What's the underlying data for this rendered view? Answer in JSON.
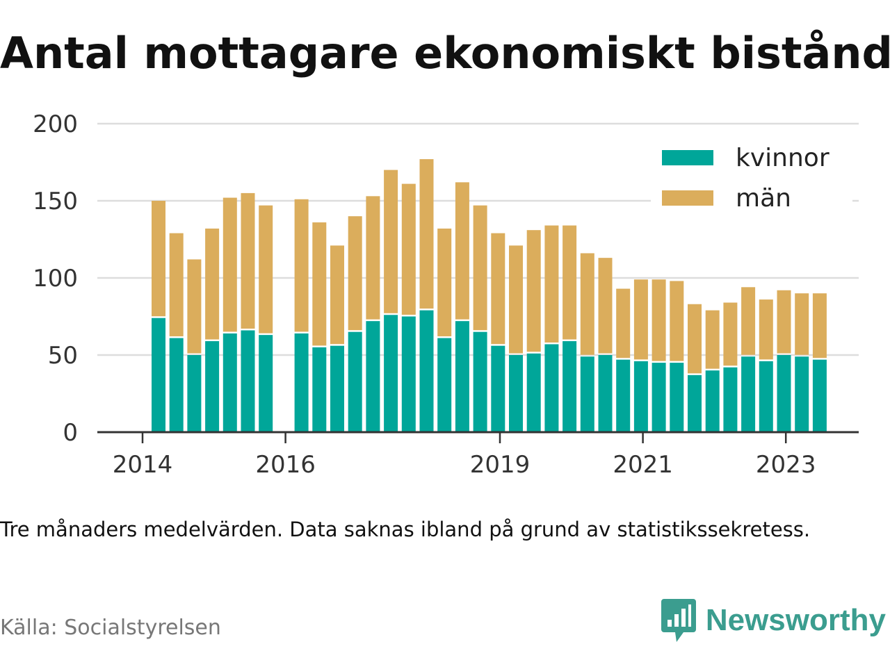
{
  "title": "Antal mottagare ekonomiskt bistånd",
  "note": "Tre månaders medelvärden. Data saknas ibland på grund av statistikssekretess.",
  "source": "Källa: Socialstyrelsen",
  "brand": {
    "name": "Newsworthy",
    "icon": "newsworthy-logo-icon",
    "color": "#3b9d8f"
  },
  "chart_data": {
    "type": "bar",
    "stacked": true,
    "title": "",
    "xlabel": "",
    "ylabel": "",
    "ylim": [
      0,
      200
    ],
    "yticks": [
      0,
      50,
      100,
      150,
      200
    ],
    "grid": true,
    "legend_position": "top-right",
    "x_start": 2014.0,
    "x_step": 0.25,
    "xticks": [
      {
        "label": "2014",
        "value": 2014.0
      },
      {
        "label": "2016",
        "value": 2016.0
      },
      {
        "label": "2019",
        "value": 2019.0
      },
      {
        "label": "2021",
        "value": 2021.0
      },
      {
        "label": "2023",
        "value": 2023.0
      }
    ],
    "series": [
      {
        "name": "kvinnor",
        "color": "#00a699",
        "values": [
          74,
          61,
          50,
          59,
          64,
          66,
          63,
          null,
          64,
          55,
          56,
          65,
          72,
          76,
          75,
          79,
          61,
          72,
          65,
          56,
          50,
          51,
          57,
          59,
          49,
          50,
          47,
          46,
          45,
          45,
          37,
          40,
          42,
          49,
          46,
          50,
          49,
          47
        ]
      },
      {
        "name": "män",
        "color": "#dbad5c",
        "values": [
          76,
          68,
          62,
          73,
          88,
          89,
          84,
          null,
          87,
          81,
          65,
          75,
          81,
          94,
          86,
          98,
          71,
          90,
          82,
          73,
          71,
          80,
          77,
          75,
          67,
          63,
          46,
          53,
          54,
          53,
          46,
          39,
          42,
          45,
          40,
          42,
          41,
          43
        ]
      }
    ]
  }
}
